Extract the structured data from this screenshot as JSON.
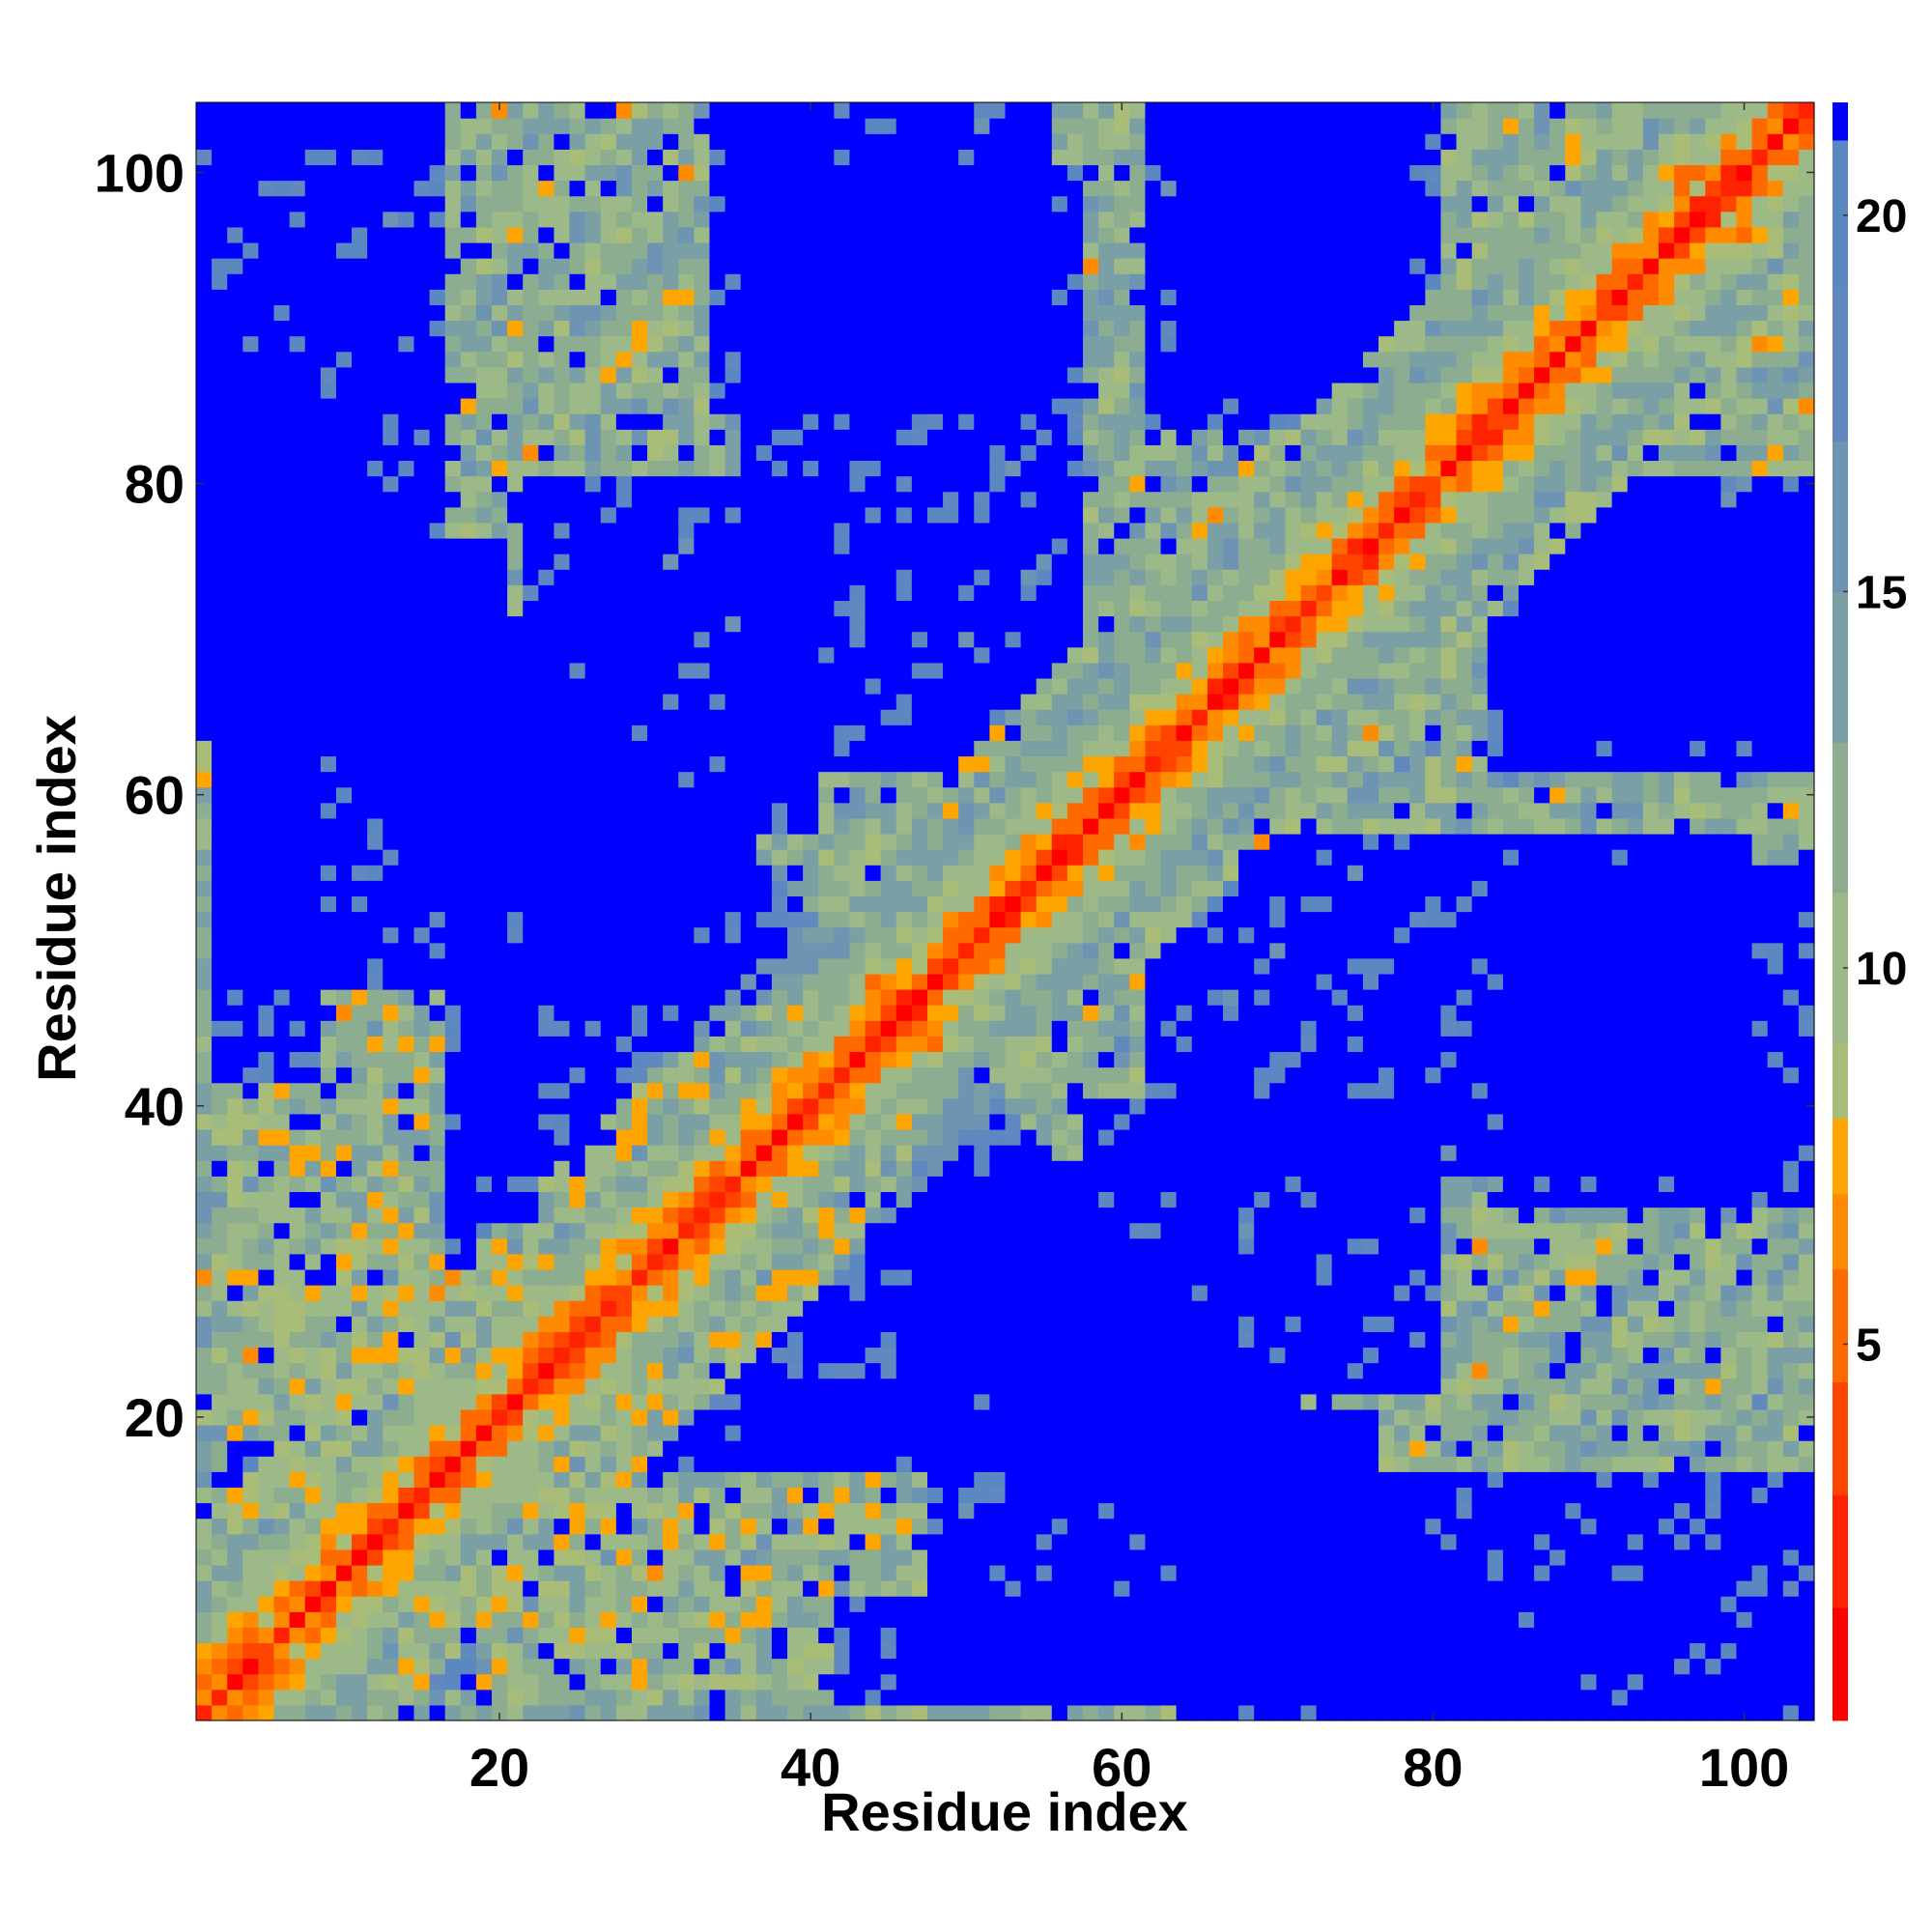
{
  "chart_data": {
    "type": "heatmap",
    "title": "",
    "xlabel": "Residue index",
    "ylabel": "Residue index",
    "xlim": [
      0.5,
      104.5
    ],
    "ylim": [
      0.5,
      104.5
    ],
    "n_residues": 104,
    "x_ticks": [
      20,
      40,
      60,
      80,
      100
    ],
    "y_ticks": [
      20,
      40,
      60,
      80,
      100
    ],
    "colorbar": {
      "range": [
        0,
        21.5
      ],
      "ticks": [
        5,
        10,
        15,
        20
      ],
      "saturated_color": "#0000ff",
      "color_steps": [
        {
          "max": 1.5,
          "color": "#ff0000"
        },
        {
          "max": 3.0,
          "color": "#ff2200"
        },
        {
          "max": 4.5,
          "color": "#ff4400"
        },
        {
          "max": 6.0,
          "color": "#ff6a00"
        },
        {
          "max": 7.0,
          "color": "#ff8c00"
        },
        {
          "max": 8.0,
          "color": "#ffa500"
        },
        {
          "max": 9.0,
          "color": "#aabd78"
        },
        {
          "max": 11.0,
          "color": "#9db987"
        },
        {
          "max": 13.0,
          "color": "#8cad8f"
        },
        {
          "max": 15.0,
          "color": "#7a9fa5"
        },
        {
          "max": 17.0,
          "color": "#6d94b3"
        },
        {
          "max": 19.0,
          "color": "#6189c0"
        },
        {
          "max": 21.0,
          "color": "#5c88c2"
        }
      ]
    },
    "contact_map_model": {
      "cutoff": 20.5,
      "diagonal_rise": 1.0,
      "domain_clusters": [
        [
          3,
          46
        ],
        [
          87,
          102
        ]
      ],
      "rotated_bands": [
        [
          17,
          50
        ],
        [
          27,
          40
        ],
        [
          57,
          29
        ],
        [
          64,
          72
        ],
        [
          83,
          90
        ],
        [
          94,
          98
        ]
      ],
      "close_patches": [
        [
          60,
          58,
          2.5,
          2
        ],
        [
          48,
          44,
          4,
          3
        ],
        [
          14,
          12,
          2,
          3
        ],
        [
          40,
          40,
          3,
          6
        ],
        [
          100,
          96,
          1.5,
          2
        ],
        [
          24,
          22,
          2,
          2
        ],
        [
          35,
          33,
          2,
          2
        ]
      ],
      "far_blocks": [
        [
          34,
          55,
          85,
          104
        ],
        [
          62,
          78,
          84,
          104
        ],
        [
          86,
          104,
          64,
          80
        ],
        [
          62,
          100,
          36,
          57
        ],
        [
          64,
          104,
          1,
          16
        ],
        [
          22,
          40,
          58,
          80
        ],
        [
          13,
          18,
          3,
          25
        ],
        [
          36,
          50,
          18,
          40
        ],
        [
          48,
          76,
          2,
          20
        ],
        [
          30,
          60,
          17,
          22
        ],
        [
          1,
          12,
          1,
          14
        ],
        [
          2,
          8,
          42,
          70
        ]
      ]
    }
  }
}
